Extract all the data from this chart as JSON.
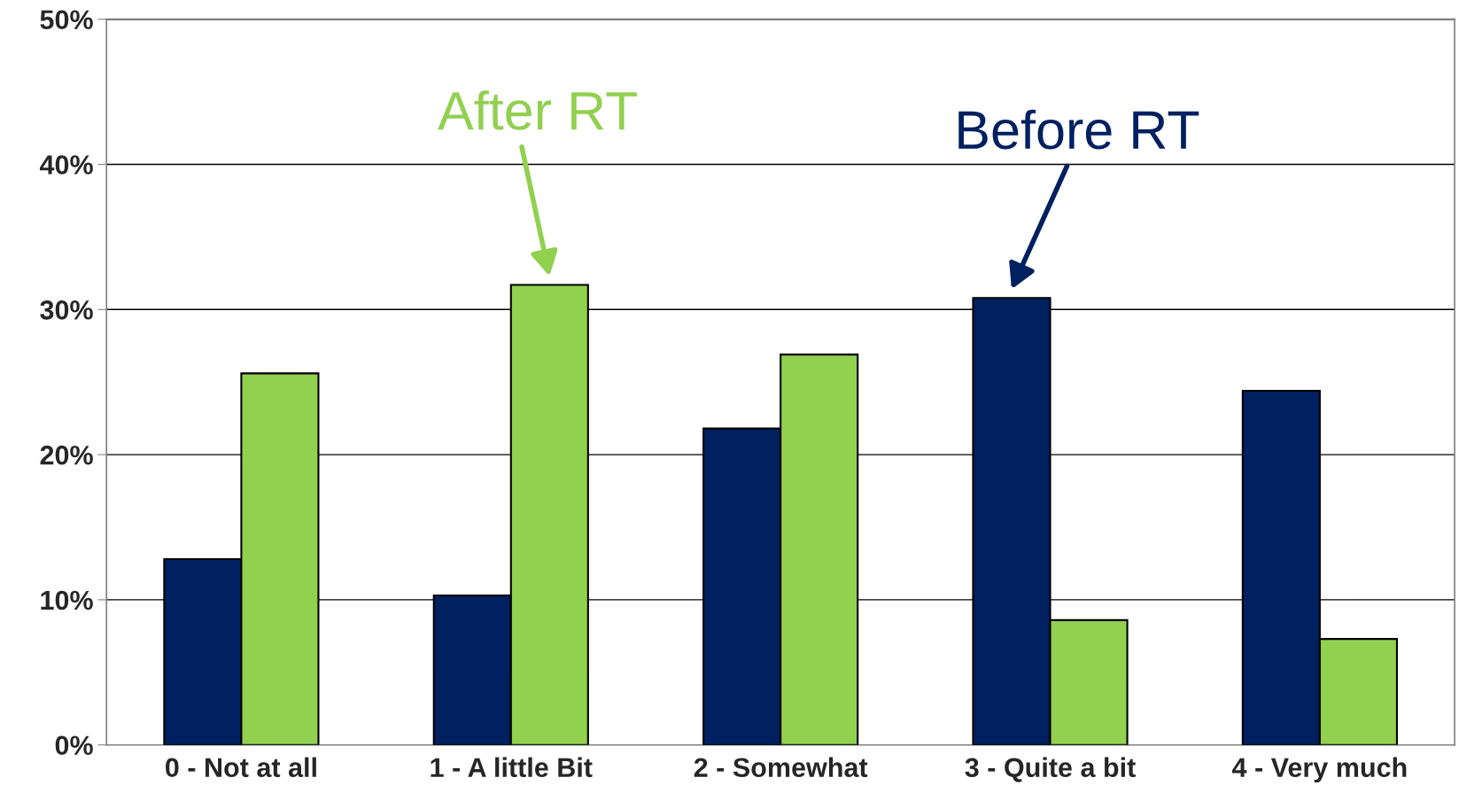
{
  "chart_data": {
    "type": "bar",
    "categories": [
      "0 - Not at all",
      "1 - A little Bit",
      "2 - Somewhat",
      "3 - Quite a bit",
      "4 - Very much"
    ],
    "series": [
      {
        "color": "#002060",
        "values": [
          12.8,
          10.3,
          21.8,
          30.8,
          24.4
        ]
      },
      {
        "color": "#92d050",
        "values": [
          25.6,
          31.7,
          26.9,
          8.6,
          7.3
        ]
      }
    ],
    "ylim": [
      0,
      50
    ],
    "yticks": [
      {
        "value": 0,
        "label": "0%"
      },
      {
        "value": 10,
        "label": "10%"
      },
      {
        "value": 20,
        "label": "20%"
      },
      {
        "value": 30,
        "label": "30%"
      },
      {
        "value": 40,
        "label": "40%"
      },
      {
        "value": 50,
        "label": "50%"
      }
    ],
    "grid": "y",
    "legend": false,
    "annotations": [
      {
        "text": "Before RT",
        "x": "3 - Quite a bit",
        "y": 30.8
      },
      {
        "text": "After RT",
        "x": "1 - A little Bit",
        "y": 31.7
      }
    ]
  }
}
